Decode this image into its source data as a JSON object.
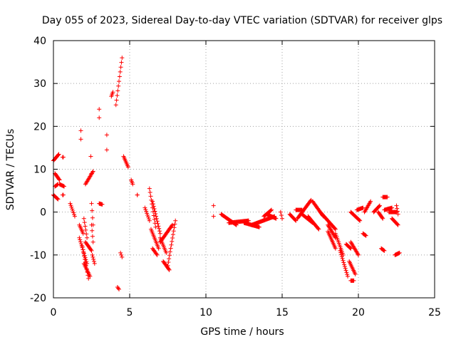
{
  "chart_data": {
    "type": "scatter",
    "title": "Day 055 of 2023, Sidereal Day-to-day VTEC variation (SDTVAR) for receiver glps",
    "xlabel": "GPS time / hours",
    "ylabel": "SDTVAR / TECUs",
    "xlim": [
      0,
      25
    ],
    "ylim": [
      -20,
      40
    ],
    "x_ticks": [
      0,
      5,
      10,
      15,
      20,
      25
    ],
    "y_ticks": [
      -20,
      -10,
      0,
      10,
      20,
      30,
      40
    ],
    "grid": true,
    "marker": "+",
    "color": "#ff0000",
    "segments": [
      [
        0.0,
        12.0,
        0.35,
        13.5
      ],
      [
        0.1,
        9.0,
        0.4,
        7.5
      ],
      [
        0.1,
        6.0,
        0.3,
        6.5
      ],
      [
        0.0,
        4.0,
        0.3,
        3.0
      ],
      [
        0.4,
        6.5,
        0.7,
        6.0
      ],
      [
        0.6,
        12.8,
        0.65,
        12.8
      ],
      [
        0.6,
        4.0,
        0.65,
        4.0
      ],
      [
        1.1,
        2.0,
        1.4,
        -1.0
      ],
      [
        1.7,
        -3.0,
        1.95,
        -5.0
      ],
      [
        1.7,
        -6.0,
        2.2,
        -12.0
      ],
      [
        1.8,
        19.0,
        1.8,
        17.0
      ],
      [
        1.9,
        -8.0,
        2.3,
        -15.5
      ],
      [
        2.0,
        -1.5,
        2.2,
        -6.0
      ],
      [
        2.0,
        -12.0,
        2.4,
        -15.0
      ],
      [
        2.1,
        -7.0,
        2.5,
        -9.0
      ],
      [
        2.1,
        6.5,
        2.6,
        9.5
      ],
      [
        2.45,
        13.0,
        2.5,
        9.0
      ],
      [
        2.5,
        2.0,
        2.6,
        -3.0
      ],
      [
        2.5,
        -3.0,
        2.6,
        -7.0
      ],
      [
        2.55,
        -10.0,
        2.7,
        -12.0
      ],
      [
        3.0,
        24.0,
        3.0,
        22.0
      ],
      [
        3.0,
        2.0,
        3.2,
        1.8
      ],
      [
        3.5,
        18.0,
        3.5,
        14.5
      ],
      [
        3.8,
        27.0,
        3.9,
        28.0
      ],
      [
        4.1,
        25.0,
        4.5,
        36.0
      ],
      [
        4.2,
        -17.5,
        4.3,
        -18.0
      ],
      [
        4.4,
        -9.5,
        4.5,
        -10.5
      ],
      [
        4.6,
        13.0,
        4.9,
        10.5
      ],
      [
        5.1,
        7.5,
        5.2,
        6.5
      ],
      [
        5.5,
        4.0,
        5.5,
        4.0
      ],
      [
        6.0,
        1.0,
        6.3,
        -2.0
      ],
      [
        6.3,
        5.5,
        6.7,
        -3.5
      ],
      [
        6.4,
        -4.0,
        6.9,
        -8.5
      ],
      [
        6.5,
        -8.5,
        6.8,
        -10.0
      ],
      [
        6.5,
        2.5,
        7.0,
        -5.0
      ],
      [
        7.0,
        -6.0,
        7.4,
        -9.5
      ],
      [
        7.2,
        -11.5,
        7.6,
        -13.5
      ],
      [
        7.5,
        -12.5,
        8.0,
        -2.0
      ],
      [
        7.0,
        -7.0,
        7.8,
        -3.0
      ],
      [
        10.5,
        1.5,
        10.5,
        -1.0
      ],
      [
        11.0,
        -0.5,
        12.0,
        -3.0
      ],
      [
        11.5,
        -2.5,
        12.8,
        -2.0
      ],
      [
        12.5,
        -2.5,
        13.5,
        -3.5
      ],
      [
        13.0,
        -3.0,
        14.5,
        -1.0
      ],
      [
        13.8,
        -1.0,
        14.3,
        0.5
      ],
      [
        14.0,
        -0.5,
        14.6,
        -1.5
      ],
      [
        14.9,
        0.0,
        15.0,
        -1.5
      ],
      [
        15.5,
        -0.5,
        15.9,
        -2.0
      ],
      [
        15.9,
        0.5,
        16.3,
        0.5
      ],
      [
        16.0,
        -1.5,
        16.9,
        2.8
      ],
      [
        16.3,
        -0.5,
        17.0,
        -2.5
      ],
      [
        16.7,
        -1.0,
        17.4,
        -4.0
      ],
      [
        17.0,
        2.5,
        17.7,
        -1.0
      ],
      [
        17.5,
        0.0,
        18.5,
        -4.0
      ],
      [
        18.0,
        -3.0,
        18.5,
        -6.0
      ],
      [
        18.0,
        -4.5,
        18.5,
        -8.5
      ],
      [
        18.5,
        -5.0,
        19.0,
        -10.0
      ],
      [
        18.8,
        -9.0,
        19.3,
        -15.0
      ],
      [
        19.2,
        -7.5,
        19.5,
        -8.5
      ],
      [
        19.4,
        -11.5,
        19.8,
        -14.5
      ],
      [
        19.5,
        -16.0,
        19.7,
        -16.0
      ],
      [
        19.5,
        -7.0,
        20.0,
        -10.0
      ],
      [
        19.5,
        0.0,
        20.1,
        -2.0
      ],
      [
        19.9,
        0.5,
        20.3,
        1.0
      ],
      [
        20.3,
        -5.0,
        20.5,
        -5.5
      ],
      [
        20.4,
        0.0,
        20.8,
        2.5
      ],
      [
        21.0,
        0.0,
        21.4,
        1.5
      ],
      [
        21.3,
        0.0,
        21.6,
        -1.5
      ],
      [
        21.5,
        -8.5,
        21.7,
        -9.0
      ],
      [
        21.6,
        3.5,
        21.9,
        3.5
      ],
      [
        21.7,
        0.5,
        22.2,
        1.0
      ],
      [
        22.0,
        0.0,
        22.5,
        0.0
      ],
      [
        22.2,
        -1.5,
        22.6,
        -3.0
      ],
      [
        22.5,
        1.5,
        22.6,
        -0.5
      ],
      [
        22.4,
        -10.0,
        22.7,
        -9.5
      ]
    ]
  }
}
